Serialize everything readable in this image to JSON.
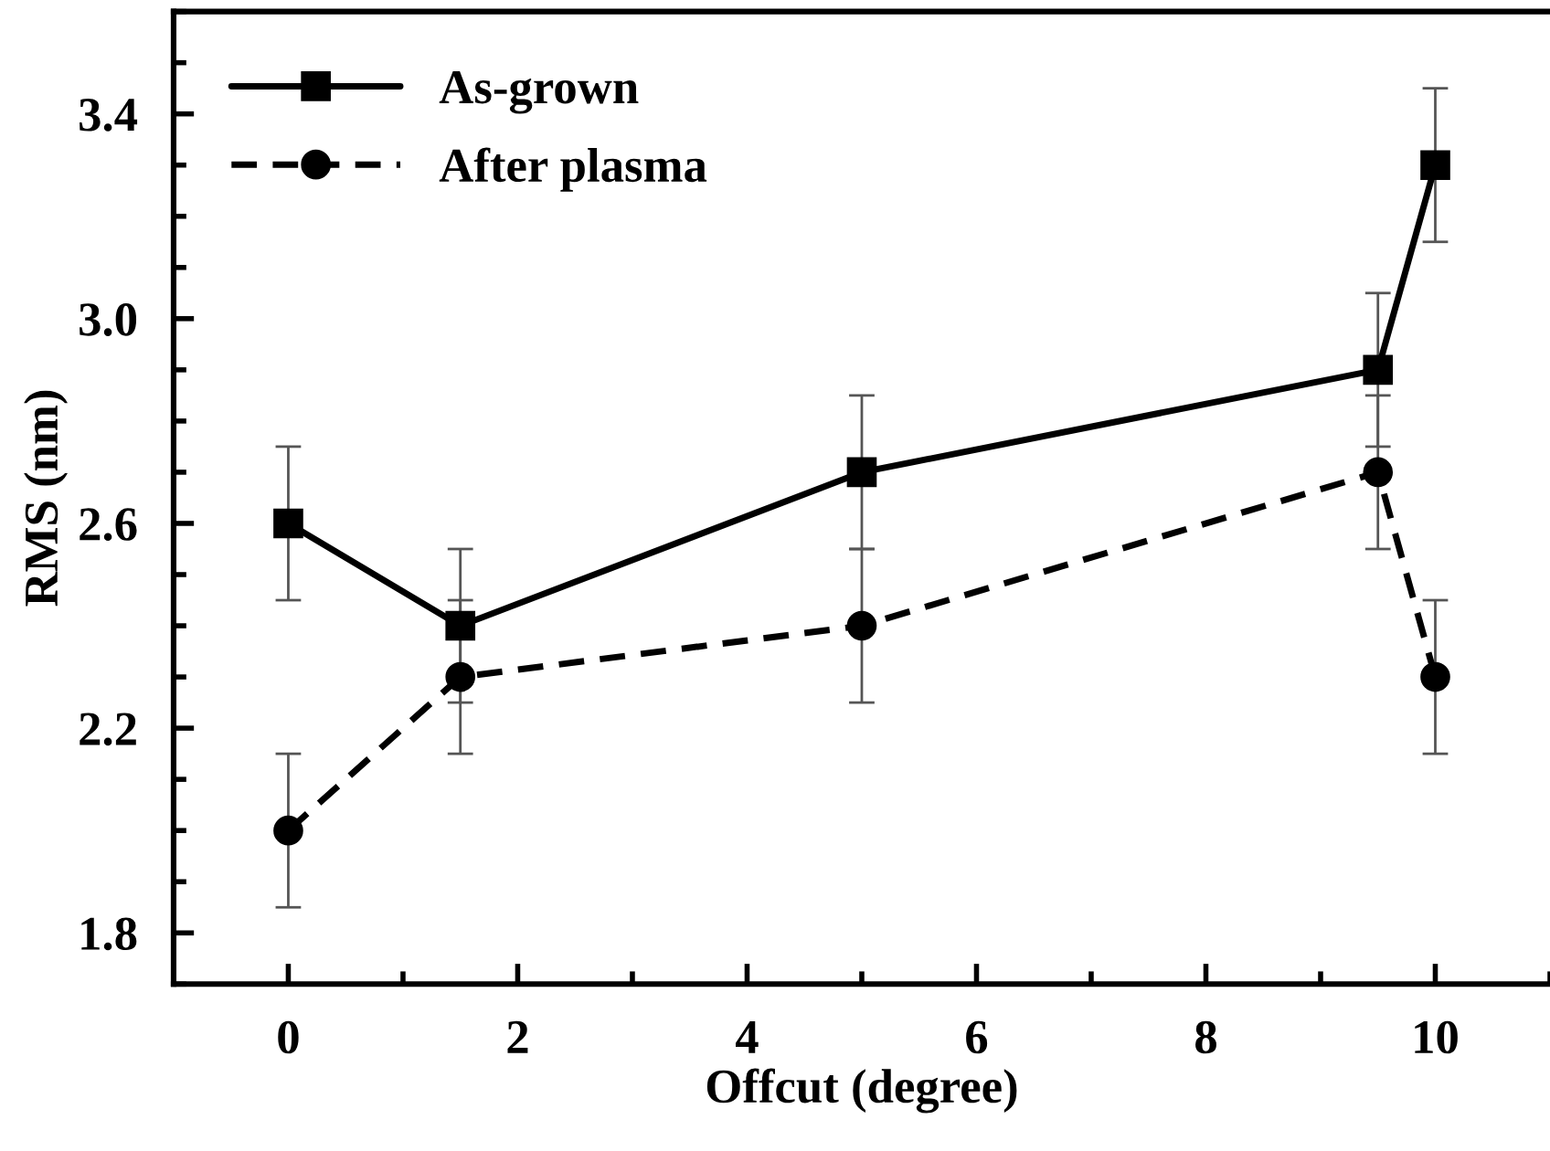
{
  "chart_data": {
    "type": "line",
    "xlabel": "Offcut (degree)",
    "ylabel": "RMS (nm)",
    "xlim": [
      -1,
      11
    ],
    "xticks": [
      0,
      2,
      4,
      6,
      8,
      10
    ],
    "ylim": [
      1.7,
      3.6
    ],
    "yticks": [
      1.8,
      2.2,
      2.6,
      {
        "value": 3.0,
        "label": "3.0"
      },
      3.4
    ],
    "x": [
      0,
      1.5,
      5,
      9.5,
      10
    ],
    "series": [
      {
        "name": "As-grown",
        "color": "#000000",
        "marker": "square",
        "line_style": "solid",
        "values": [
          2.6,
          2.4,
          2.7,
          2.9,
          3.3
        ],
        "errors": [
          0.15,
          0.15,
          0.15,
          0.15,
          0.15
        ]
      },
      {
        "name": "After plasma",
        "color": "#000000",
        "marker": "circle",
        "line_style": "dashed",
        "values": [
          2.0,
          2.3,
          2.4,
          2.7,
          2.3
        ],
        "errors": [
          0.15,
          0.15,
          0.15,
          0.15,
          0.15
        ]
      }
    ],
    "legend": "top left",
    "grid": false
  }
}
